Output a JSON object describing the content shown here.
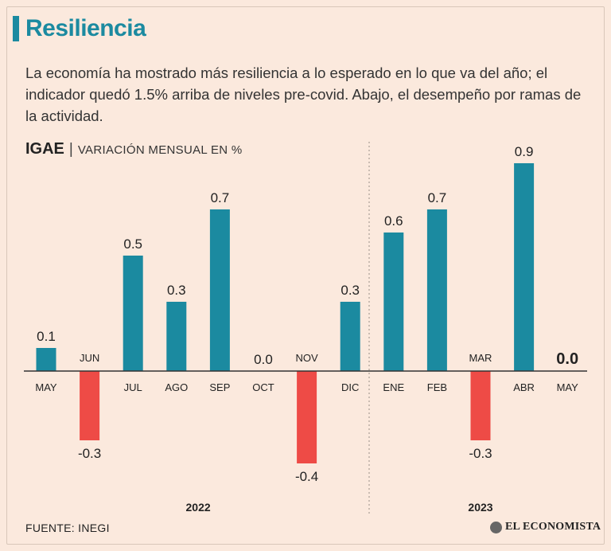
{
  "header": {
    "title": "Resiliencia",
    "intro": "La economía ha mostrado más resiliencia a lo esperado en lo que va del año; el indicador quedó 1.5% arriba de niveles pre-covid. Abajo, el desempeño por ramas de la actividad."
  },
  "chart_head": {
    "name": "IGAE",
    "separator": "|",
    "subtitle": "VARIACIÓN MENSUAL EN %"
  },
  "footer": {
    "source": "FUENTE: INEGI",
    "brand": "EL ECONOMISTA"
  },
  "colors": {
    "positive": "#1b8aa0",
    "negative": "#ee4b46",
    "title": "#1b8aa0"
  },
  "chart_data": {
    "type": "bar",
    "title": "IGAE",
    "ylabel": "VARIACIÓN MENSUAL EN %",
    "categories": [
      "MAY",
      "JUN",
      "JUL",
      "AGO",
      "SEP",
      "OCT",
      "NOV",
      "DIC",
      "ENE",
      "FEB",
      "MAR",
      "ABR",
      "MAY"
    ],
    "values": [
      0.1,
      -0.3,
      0.5,
      0.3,
      0.7,
      0.0,
      -0.4,
      0.3,
      0.6,
      0.7,
      -0.3,
      0.9,
      0.0
    ],
    "value_labels": [
      "0.1",
      "-0.3",
      "0.5",
      "0.3",
      "0.7",
      "0.0",
      "-0.4",
      "0.3",
      "0.6",
      "0.7",
      "-0.3",
      "0.9",
      "0.0"
    ],
    "years": [
      {
        "label": "2022",
        "from": 0,
        "to": 7
      },
      {
        "label": "2023",
        "from": 8,
        "to": 12
      }
    ],
    "highlight_last": true,
    "ylim": [
      -0.45,
      0.95
    ],
    "grid": false,
    "legend": "none"
  }
}
